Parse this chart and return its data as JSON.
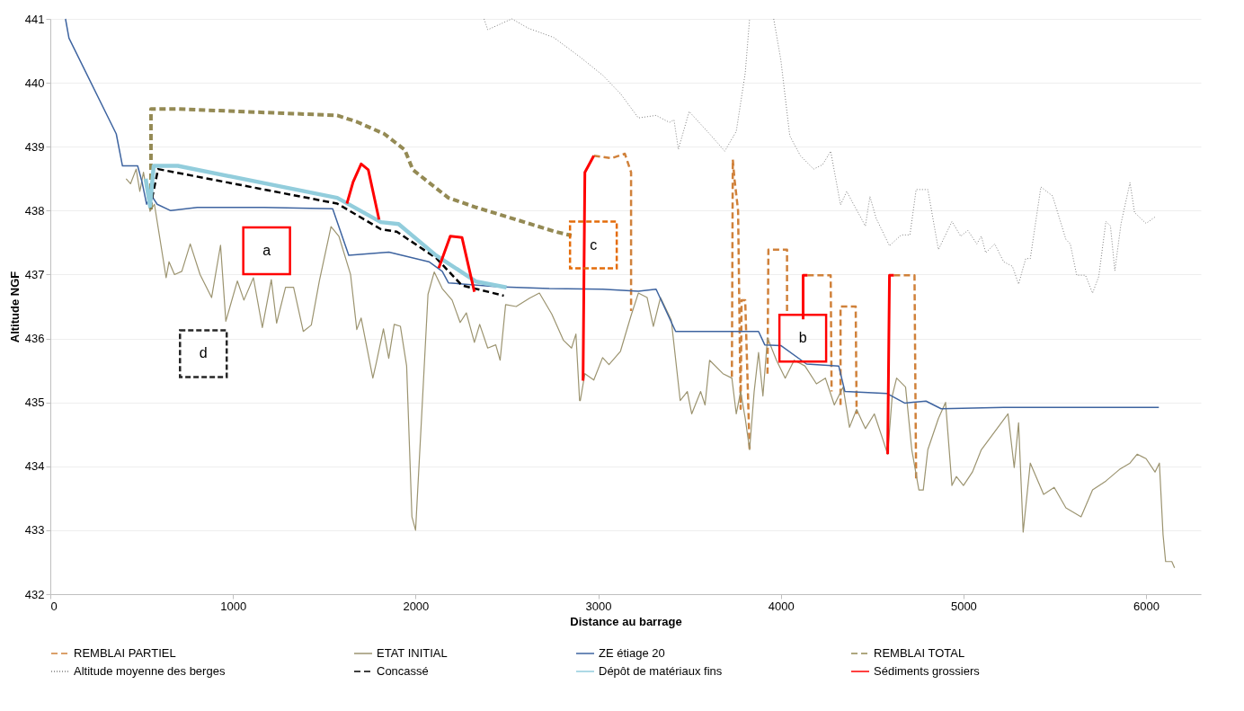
{
  "chart_data": {
    "type": "line",
    "xlabel": "Distance au barrage",
    "ylabel": "Altitude NGF",
    "xlim": [
      0,
      6300
    ],
    "xticks": [
      0,
      1000,
      2000,
      3000,
      4000,
      5000,
      6000
    ],
    "ylim": [
      432,
      441
    ],
    "yticks": [
      432,
      433,
      434,
      435,
      436,
      437,
      438,
      439,
      440,
      441
    ],
    "grid": "y",
    "legend": "bottom",
    "series": [
      {
        "name": "REMBLAI PARTIEL",
        "color": "#d0813a",
        "line_style": "dashed",
        "x": [
          2976,
          3073,
          3146,
          3180,
          3180,
          3181,
          3732,
          3737,
          3746,
          3766,
          3780,
          3785,
          3805,
          3829,
          3830,
          3927,
          3932,
          4034,
          4034,
          4035,
          4146,
          4273,
          4278,
          4279,
          4327,
          4327,
          4410,
          4415,
          4416,
          4619,
          4732,
          4741
        ],
        "values": [
          438.86,
          438.82,
          438.89,
          438.6,
          436.43,
          null,
          435.4,
          438.8,
          438.5,
          438.0,
          434.9,
          436.6,
          436.6,
          434.26,
          null,
          435.45,
          437.39,
          437.39,
          436.4,
          null,
          436.99,
          436.99,
          435.17,
          null,
          434.96,
          436.5,
          436.5,
          434.82,
          null,
          436.99,
          436.99,
          433.77
        ]
      },
      {
        "name": "ETAT INITIAL",
        "color": "#9c9470",
        "line_style": "solid",
        "x": [
          415,
          439,
          470,
          490,
          510,
          546,
          570,
          634,
          650,
          680,
          720,
          766,
          820,
          883,
          932,
          961,
          1024,
          1060,
          1112,
          1161,
          1210,
          1239,
          1288,
          1332,
          1385,
          1429,
          1473,
          1537,
          1580,
          1644,
          1678,
          1702,
          1766,
          1785,
          1824,
          1853,
          1883,
          1917,
          1951,
          1980,
          2000,
          2029,
          2068,
          2102,
          2146,
          2200,
          2244,
          2278,
          2322,
          2351,
          2395,
          2439,
          2463,
          2493,
          2551,
          2624,
          2678,
          2746,
          2810,
          2854,
          2878,
          2898,
          2902,
          2927,
          2976,
          3024,
          3059,
          3122,
          3180,
          3220,
          3268,
          3302,
          3341,
          3400,
          3449,
          3488,
          3512,
          3561,
          3585,
          3610,
          3683,
          3732,
          3756,
          3780,
          3805,
          3829,
          3854,
          3878,
          3902,
          3927,
          3976,
          4024,
          4073,
          4132,
          4195,
          4244,
          4293,
          4341,
          4376,
          4415,
          4463,
          4512,
          4561,
          4585,
          4610,
          4634,
          4683,
          4717,
          4756,
          4780,
          4805,
          4863,
          4902,
          4937,
          4961,
          5000,
          5049,
          5098,
          5171,
          5244,
          5278,
          5302,
          5327,
          5366,
          5439,
          5497,
          5561,
          5644,
          5707,
          5780,
          5854,
          5912,
          5951,
          6000,
          6049,
          6073,
          6093,
          6107,
          6141,
          6156
        ],
        "values": [
          438.5,
          438.42,
          438.65,
          438.3,
          438.6,
          437.99,
          438.1,
          436.95,
          437.2,
          437.0,
          437.05,
          437.48,
          437.0,
          436.64,
          437.46,
          436.27,
          436.9,
          436.6,
          436.95,
          436.17,
          436.92,
          436.24,
          436.8,
          436.8,
          436.11,
          436.21,
          436.9,
          437.75,
          437.6,
          437.0,
          436.14,
          436.32,
          435.38,
          435.62,
          436.15,
          435.69,
          436.22,
          436.19,
          435.57,
          433.21,
          433.0,
          434.56,
          436.69,
          437.04,
          436.78,
          436.6,
          436.25,
          436.4,
          435.94,
          436.22,
          435.85,
          435.9,
          435.66,
          436.53,
          436.5,
          436.63,
          436.71,
          436.38,
          435.97,
          435.85,
          436.07,
          435.03,
          435.03,
          435.45,
          435.35,
          435.7,
          435.59,
          435.8,
          436.36,
          436.71,
          436.64,
          436.19,
          436.64,
          436.29,
          435.03,
          435.17,
          434.82,
          435.17,
          434.96,
          435.66,
          435.45,
          435.38,
          434.82,
          435.17,
          434.75,
          434.26,
          435.17,
          435.78,
          435.1,
          436.01,
          435.66,
          435.38,
          435.66,
          435.57,
          435.29,
          435.38,
          434.96,
          435.24,
          434.61,
          434.89,
          434.59,
          434.82,
          434.4,
          434.19,
          435.1,
          435.38,
          435.24,
          434.26,
          433.63,
          433.63,
          434.26,
          434.75,
          435.0,
          433.7,
          433.84,
          433.7,
          433.91,
          434.26,
          434.54,
          434.82,
          433.98,
          434.68,
          432.97,
          434.05,
          433.56,
          433.67,
          433.35,
          433.21,
          433.63,
          433.77,
          433.95,
          434.05,
          434.19,
          434.12,
          433.91,
          434.05,
          432.93,
          432.51,
          432.51,
          432.41
        ]
      },
      {
        "name": "ZE étiage 20",
        "color": "#3e64a0",
        "line_style": "solid",
        "x": [
          83,
          102,
          361,
          395,
          478,
          502,
          527,
          551,
          585,
          659,
          805,
          1171,
          1546,
          1634,
          1854,
          2073,
          2146,
          2180,
          2449,
          2732,
          3024,
          3220,
          3317,
          3424,
          3659,
          3878,
          3912,
          4000,
          4141,
          4317,
          4351,
          4580,
          4678,
          4795,
          4878,
          5220,
          6070
        ],
        "values": [
          441,
          440.7,
          439.2,
          438.7,
          438.7,
          438.45,
          438.1,
          438.25,
          438.1,
          438.0,
          438.05,
          438.05,
          438.03,
          437.3,
          437.35,
          437.2,
          437.05,
          436.87,
          436.81,
          436.78,
          436.77,
          436.74,
          436.77,
          436.11,
          436.11,
          436.11,
          435.9,
          435.89,
          435.6,
          435.57,
          435.17,
          435.14,
          434.99,
          435.02,
          434.9,
          434.92,
          434.92
        ]
      },
      {
        "name": "REMBLAI TOTAL",
        "color": "#948a54",
        "line_style": "dashed",
        "x": [
          551,
          551,
          698,
          1571,
          1678,
          1829,
          1941,
          1985,
          2068,
          2180,
          2332,
          2551,
          2766,
          2854
        ],
        "values": [
          438.02,
          439.59,
          439.59,
          439.49,
          439.39,
          439.2,
          438.95,
          438.64,
          438.45,
          438.2,
          438.05,
          437.86,
          437.67,
          437.61
        ]
      },
      {
        "name": "Altitude moyenne des berges",
        "color": "#7f7f7f",
        "line_style": "dotted",
        "x": [
          2375,
          2395,
          2527,
          2620,
          2756,
          2902,
          3024,
          3122,
          3220,
          3317,
          3390,
          3415,
          3439,
          3498,
          3610,
          3693,
          3756,
          3805,
          3829,
          3900,
          3961,
          4000,
          4049,
          4107,
          4180,
          4229,
          4273,
          4327,
          4361,
          4400,
          4463,
          4488,
          4522,
          4595,
          4659,
          4707,
          4741,
          4805,
          4863,
          4937,
          4985,
          5024,
          5073,
          5098,
          5122,
          5171,
          5220,
          5268,
          5302,
          5341,
          5366,
          5424,
          5488,
          5561,
          5585,
          5620,
          5668,
          5707,
          5741,
          5780,
          5805,
          5829,
          5863,
          5912,
          5937,
          6000,
          6049
        ],
        "values": [
          441,
          440.83,
          441,
          440.85,
          440.71,
          440.4,
          440.12,
          439.83,
          439.45,
          439.49,
          439.38,
          439.42,
          438.96,
          439.55,
          439.2,
          438.93,
          439.24,
          440.15,
          441,
          null,
          441,
          440.36,
          439.17,
          438.86,
          438.65,
          438.72,
          438.93,
          438.09,
          438.3,
          438.09,
          437.76,
          438.22,
          437.88,
          437.45,
          437.62,
          437.62,
          438.33,
          438.33,
          437.39,
          437.83,
          437.6,
          437.69,
          437.48,
          437.6,
          437.34,
          437.48,
          437.2,
          437.13,
          436.85,
          437.25,
          437.25,
          438.37,
          438.23,
          437.55,
          437.48,
          436.99,
          436.99,
          436.71,
          436.97,
          437.83,
          437.76,
          437.06,
          437.8,
          438.44,
          437.97,
          437.8,
          437.9
        ]
      },
      {
        "name": "Concassé",
        "color": "#000000",
        "line_style": "dashed",
        "x": [
          546,
          590,
          1571,
          1810,
          1897,
          2112,
          2254,
          2483
        ],
        "values": [
          438.04,
          438.65,
          438.11,
          437.71,
          437.67,
          437.26,
          436.83,
          436.67
        ]
      },
      {
        "name": "Dépôt de matériaux fins",
        "color": "#92cddc",
        "line_style": "solid",
        "x": [
          522,
          546,
          566,
          698,
          1571,
          1810,
          1907,
          2112,
          2332,
          2498
        ],
        "values": [
          438.5,
          438.07,
          438.7,
          438.7,
          438.2,
          437.82,
          437.79,
          437.3,
          436.89,
          436.8
        ]
      },
      {
        "name": "Sédiments grossiers",
        "color": "#ff0000",
        "line_style": "solid",
        "x": [
          1624,
          1658,
          1702,
          1741,
          1800,
          1801,
          2127,
          2190,
          2254,
          2322,
          2323,
          2917,
          2927,
          2976,
          2977,
          4122,
          4122,
          4146,
          4147,
          4585,
          4595,
          4619
        ],
        "values": [
          438.11,
          438.45,
          438.73,
          438.64,
          437.86,
          null,
          437.1,
          437.6,
          437.58,
          436.73,
          null,
          435.34,
          438.6,
          438.86,
          null,
          436.3,
          436.99,
          436.99,
          null,
          434.19,
          436.99,
          436.99
        ]
      }
    ],
    "annotations": [
      "a",
      "b",
      "c",
      "d"
    ]
  }
}
